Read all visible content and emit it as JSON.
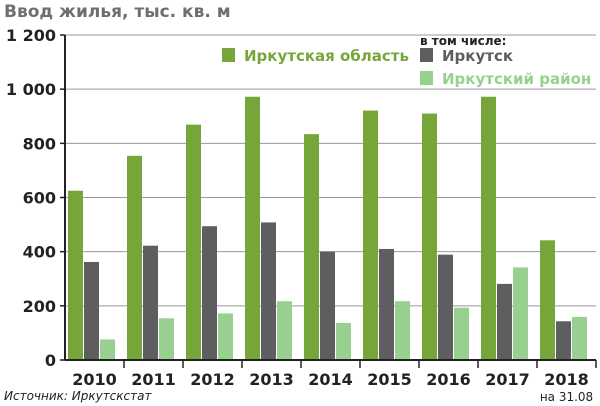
{
  "chart_data": {
    "type": "bar",
    "title": "Ввод жилья, тыс. кв. м",
    "categories": [
      "2010",
      "2011",
      "2012",
      "2013",
      "2014",
      "2015",
      "2016",
      "2017",
      "2018"
    ],
    "category_sublabels": [
      "",
      "",
      "",
      "",
      "",
      "",
      "",
      "",
      "на 31.08"
    ],
    "legend_header": "в том числе:",
    "series": [
      {
        "name": "Иркутская область",
        "color": "#76a63a",
        "values": [
          625,
          754,
          869,
          972,
          834,
          921,
          910,
          972,
          442
        ]
      },
      {
        "name": "Иркутск",
        "color": "#5e5e60",
        "values": [
          362,
          422,
          494,
          508,
          400,
          410,
          389,
          281,
          143
        ]
      },
      {
        "name": "Иркутский район",
        "color": "#97d08f",
        "values": [
          76,
          154,
          172,
          217,
          137,
          217,
          193,
          342,
          159
        ]
      }
    ],
    "ylim": [
      0,
      1200
    ],
    "yticks": [
      0,
      200,
      400,
      600,
      800,
      1000,
      1200
    ],
    "ytick_labels": [
      "0",
      "200",
      "400",
      "600",
      "800",
      "1 000",
      "1 200"
    ],
    "grid": true,
    "legend_placement": "top-right",
    "source": "Источник: Иркутскстат"
  }
}
